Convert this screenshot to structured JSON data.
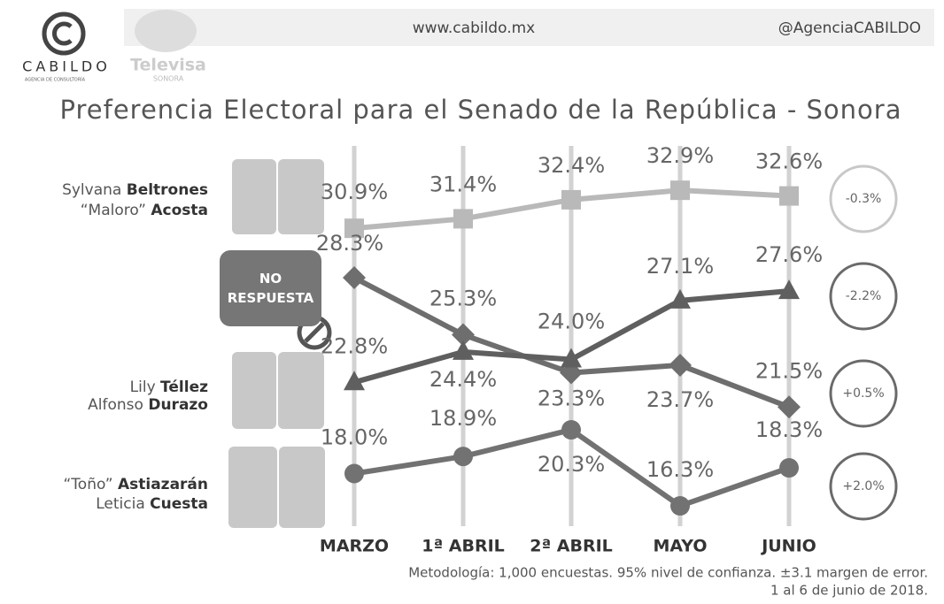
{
  "header": {
    "brand": "CABILDO",
    "brand_sub": "AGENCIA DE CONSULTORÍA",
    "partner": "Televisa",
    "partner_sub": "SONORA",
    "website": "www.cabildo.mx",
    "handle": "@AgenciaCABILDO"
  },
  "chart_data": {
    "type": "line",
    "title": "Preferencia Electoral para el Senado de la República - Sonora",
    "categories": [
      "MARZO",
      "1ª ABRIL",
      "2ª ABRIL",
      "MAYO",
      "JUNIO"
    ],
    "ylim": [
      15,
      35
    ],
    "series": [
      {
        "name": [
          "Sylvana Beltrones",
          "“Maloro” Acosta"
        ],
        "color": "#b9b9b9",
        "marker": "square",
        "values": [
          30.9,
          31.4,
          32.4,
          32.9,
          32.6
        ],
        "value_labels": [
          "30.9%",
          "31.4%",
          "32.4%",
          "32.9%",
          "32.6%"
        ],
        "change": "-0.3%"
      },
      {
        "name": [
          "NO RESPUESTA"
        ],
        "color": "#6e6e6e",
        "marker": "diamond",
        "values": [
          28.3,
          25.3,
          23.3,
          23.7,
          21.5
        ],
        "value_labels": [
          "28.3%",
          "25.3%",
          "23.3%",
          "23.7%",
          "21.5%"
        ],
        "change": "-2.2%"
      },
      {
        "name": [
          "Lily Téllez",
          "Alfonso Durazo"
        ],
        "color": "#5f5f5f",
        "marker": "triangle",
        "values": [
          22.8,
          24.4,
          24.0,
          27.1,
          27.6
        ],
        "value_labels": [
          "22.8%",
          "24.4%",
          "24.0%",
          "27.1%",
          "27.6%"
        ],
        "change": "+0.5%"
      },
      {
        "name": [
          "“Toño” Astiazarán",
          "Leticia Cuesta"
        ],
        "color": "#727272",
        "marker": "circle",
        "values": [
          18.0,
          18.9,
          20.3,
          16.3,
          18.3
        ],
        "value_labels": [
          "18.0%",
          "18.9%",
          "20.3%",
          "16.3%",
          "18.3%"
        ],
        "change": "+2.0%"
      }
    ],
    "notes": [
      "Metodología: 1,000 encuestas. 95% nivel de confianza. ±3.1 margen de error.",
      "1 al 6 de junio de 2018."
    ]
  }
}
